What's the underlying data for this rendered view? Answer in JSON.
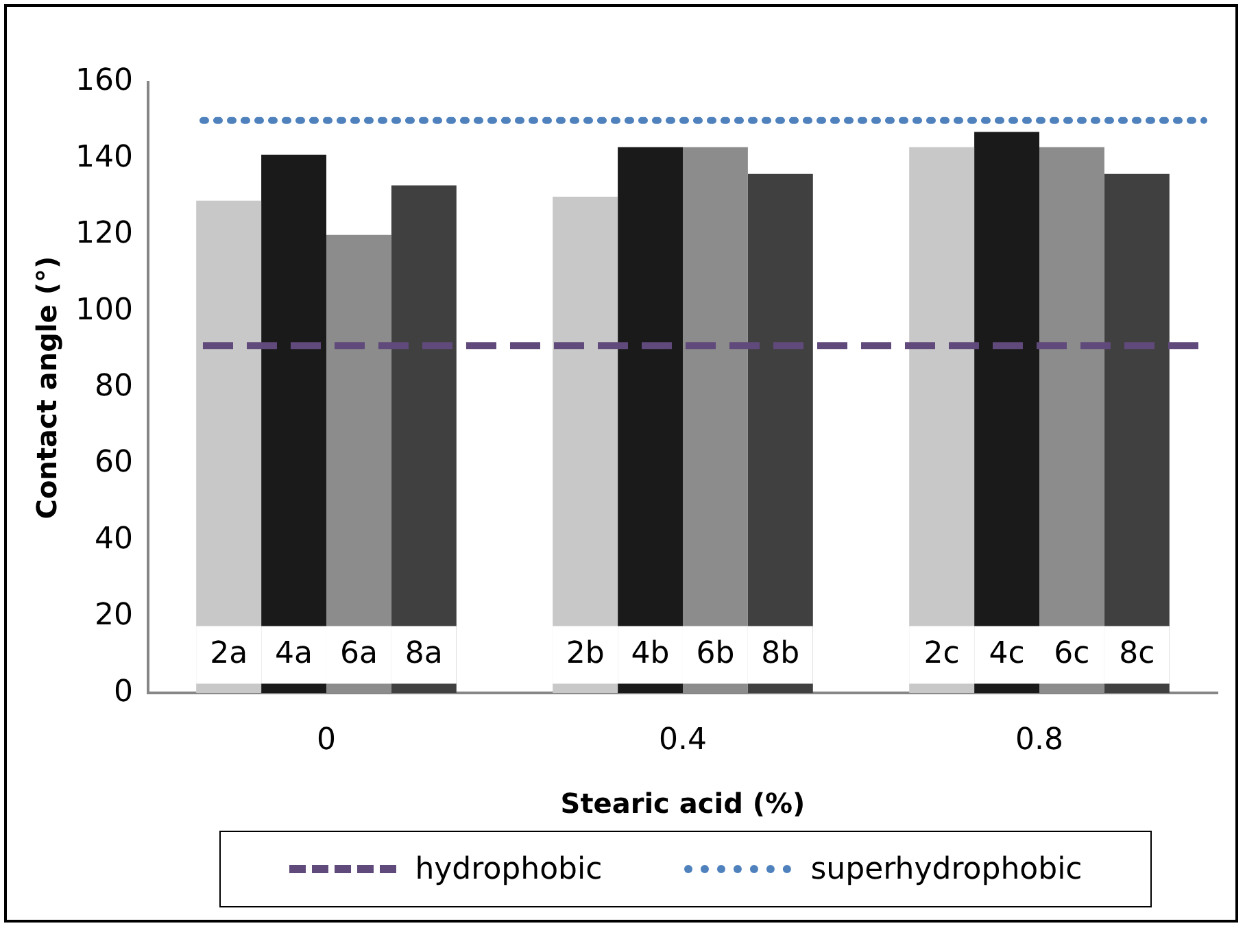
{
  "chart_data": {
    "type": "bar",
    "xlabel": "Stearic acid (%)",
    "ylabel": "Contact angle (°)",
    "categories": [
      "0",
      "0.4",
      "0.8"
    ],
    "series": [
      {
        "color": "#c8c8c8",
        "values": [
          129,
          130,
          143
        ]
      },
      {
        "color": "#1a1a1a",
        "values": [
          141,
          143,
          147
        ]
      },
      {
        "color": "#8c8c8c",
        "values": [
          120,
          143,
          143
        ]
      },
      {
        "color": "#404040",
        "values": [
          133,
          136,
          136
        ]
      }
    ],
    "annotations": [
      {
        "text": "2a",
        "x": "0",
        "y": 10
      },
      {
        "text": "4a",
        "x": "0",
        "y": 10
      },
      {
        "text": "6a",
        "x": "0",
        "y": 10
      },
      {
        "text": "8a",
        "x": "0",
        "y": 10
      },
      {
        "text": "2b",
        "x": "0.4",
        "y": 10
      },
      {
        "text": "4b",
        "x": "0.4",
        "y": 10
      },
      {
        "text": "6b",
        "x": "0.4",
        "y": 10
      },
      {
        "text": "8b",
        "x": "0.4",
        "y": 10
      },
      {
        "text": "2c",
        "x": "0.8",
        "y": 10
      },
      {
        "text": "4c",
        "x": "0.8",
        "y": 10
      },
      {
        "text": "6c",
        "x": "0.8",
        "y": 10
      },
      {
        "text": "8c",
        "x": "0.8",
        "y": 10
      }
    ],
    "ylim": [
      0,
      160
    ],
    "yticks": [
      0,
      20,
      40,
      60,
      80,
      100,
      120,
      140,
      160
    ],
    "grid": false,
    "legend": "bottom",
    "ref_lines": [
      {
        "axis": "y",
        "value": 91,
        "label": "hydrophobic",
        "color": "#604a7b",
        "line_style": "dashed"
      },
      {
        "axis": "y",
        "value": 150,
        "label": "superhydrophobic",
        "color": "#4f81bd",
        "line_style": "dotted"
      }
    ]
  }
}
